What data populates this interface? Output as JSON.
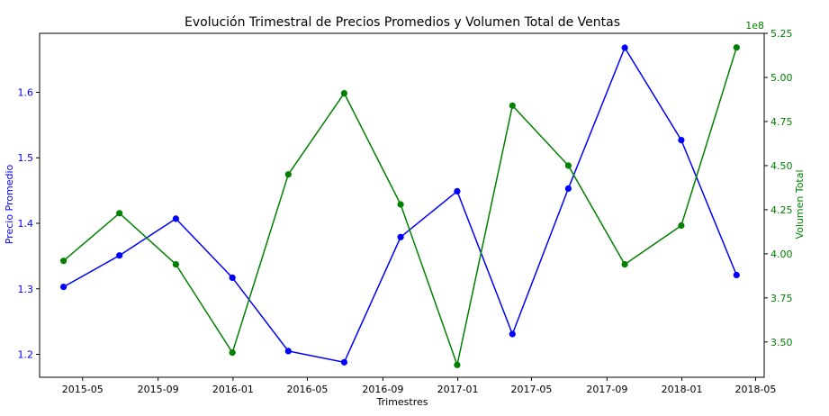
{
  "chart_data": {
    "type": "line",
    "title": "Evolución Trimestral de Precios Promedios y Volumen Total de Ventas",
    "xlabel": "Trimestres",
    "x_tick_labels": [
      "2015-05",
      "2015-09",
      "2016-01",
      "2016-05",
      "2016-09",
      "2017-01",
      "2017-05",
      "2017-09",
      "2018-01",
      "2018-05"
    ],
    "x_ticks": [
      "2015-05-01",
      "2015-09-01",
      "2016-01-01",
      "2016-05-01",
      "2016-09-01",
      "2017-01-01",
      "2017-05-01",
      "2017-09-01",
      "2018-01-01",
      "2018-05-01"
    ],
    "x_range": [
      "2015-02-20",
      "2018-05-15"
    ],
    "x": [
      "2015-03-31",
      "2015-06-30",
      "2015-09-30",
      "2015-12-31",
      "2016-03-31",
      "2016-06-30",
      "2016-09-30",
      "2016-12-31",
      "2017-03-31",
      "2017-06-30",
      "2017-09-30",
      "2017-12-31",
      "2018-03-31"
    ],
    "y_left": {
      "label": "Precio Promedio",
      "color": "#0000ff",
      "range": [
        1.165,
        1.69
      ],
      "ticks": [
        1.2,
        1.3,
        1.4,
        1.5,
        1.6
      ],
      "tick_labels": [
        "1.2",
        "1.3",
        "1.4",
        "1.5",
        "1.6"
      ]
    },
    "y_right": {
      "label": "Volumen Total",
      "color": "#008000",
      "offset_text": "1e8",
      "range": [
        3.3,
        5.25
      ],
      "ticks": [
        3.5,
        3.75,
        4.0,
        4.25,
        4.5,
        4.75,
        5.0,
        5.25
      ],
      "tick_labels": [
        "3.50",
        "3.75",
        "4.00",
        "4.25",
        "4.50",
        "4.75",
        "5.00",
        "5.25"
      ]
    },
    "series": [
      {
        "axis": "left",
        "color": "#0000ff",
        "values": [
          1.303,
          1.351,
          1.407,
          1.317,
          1.205,
          1.188,
          1.379,
          1.449,
          1.231,
          1.453,
          1.668,
          1.527,
          1.321
        ]
      },
      {
        "axis": "right",
        "color": "#008000",
        "values": [
          3.96,
          4.23,
          3.94,
          3.44,
          4.45,
          4.91,
          4.28,
          3.37,
          4.84,
          4.5,
          3.94,
          4.16,
          5.17
        ]
      }
    ],
    "grid": false,
    "legend": "none"
  }
}
